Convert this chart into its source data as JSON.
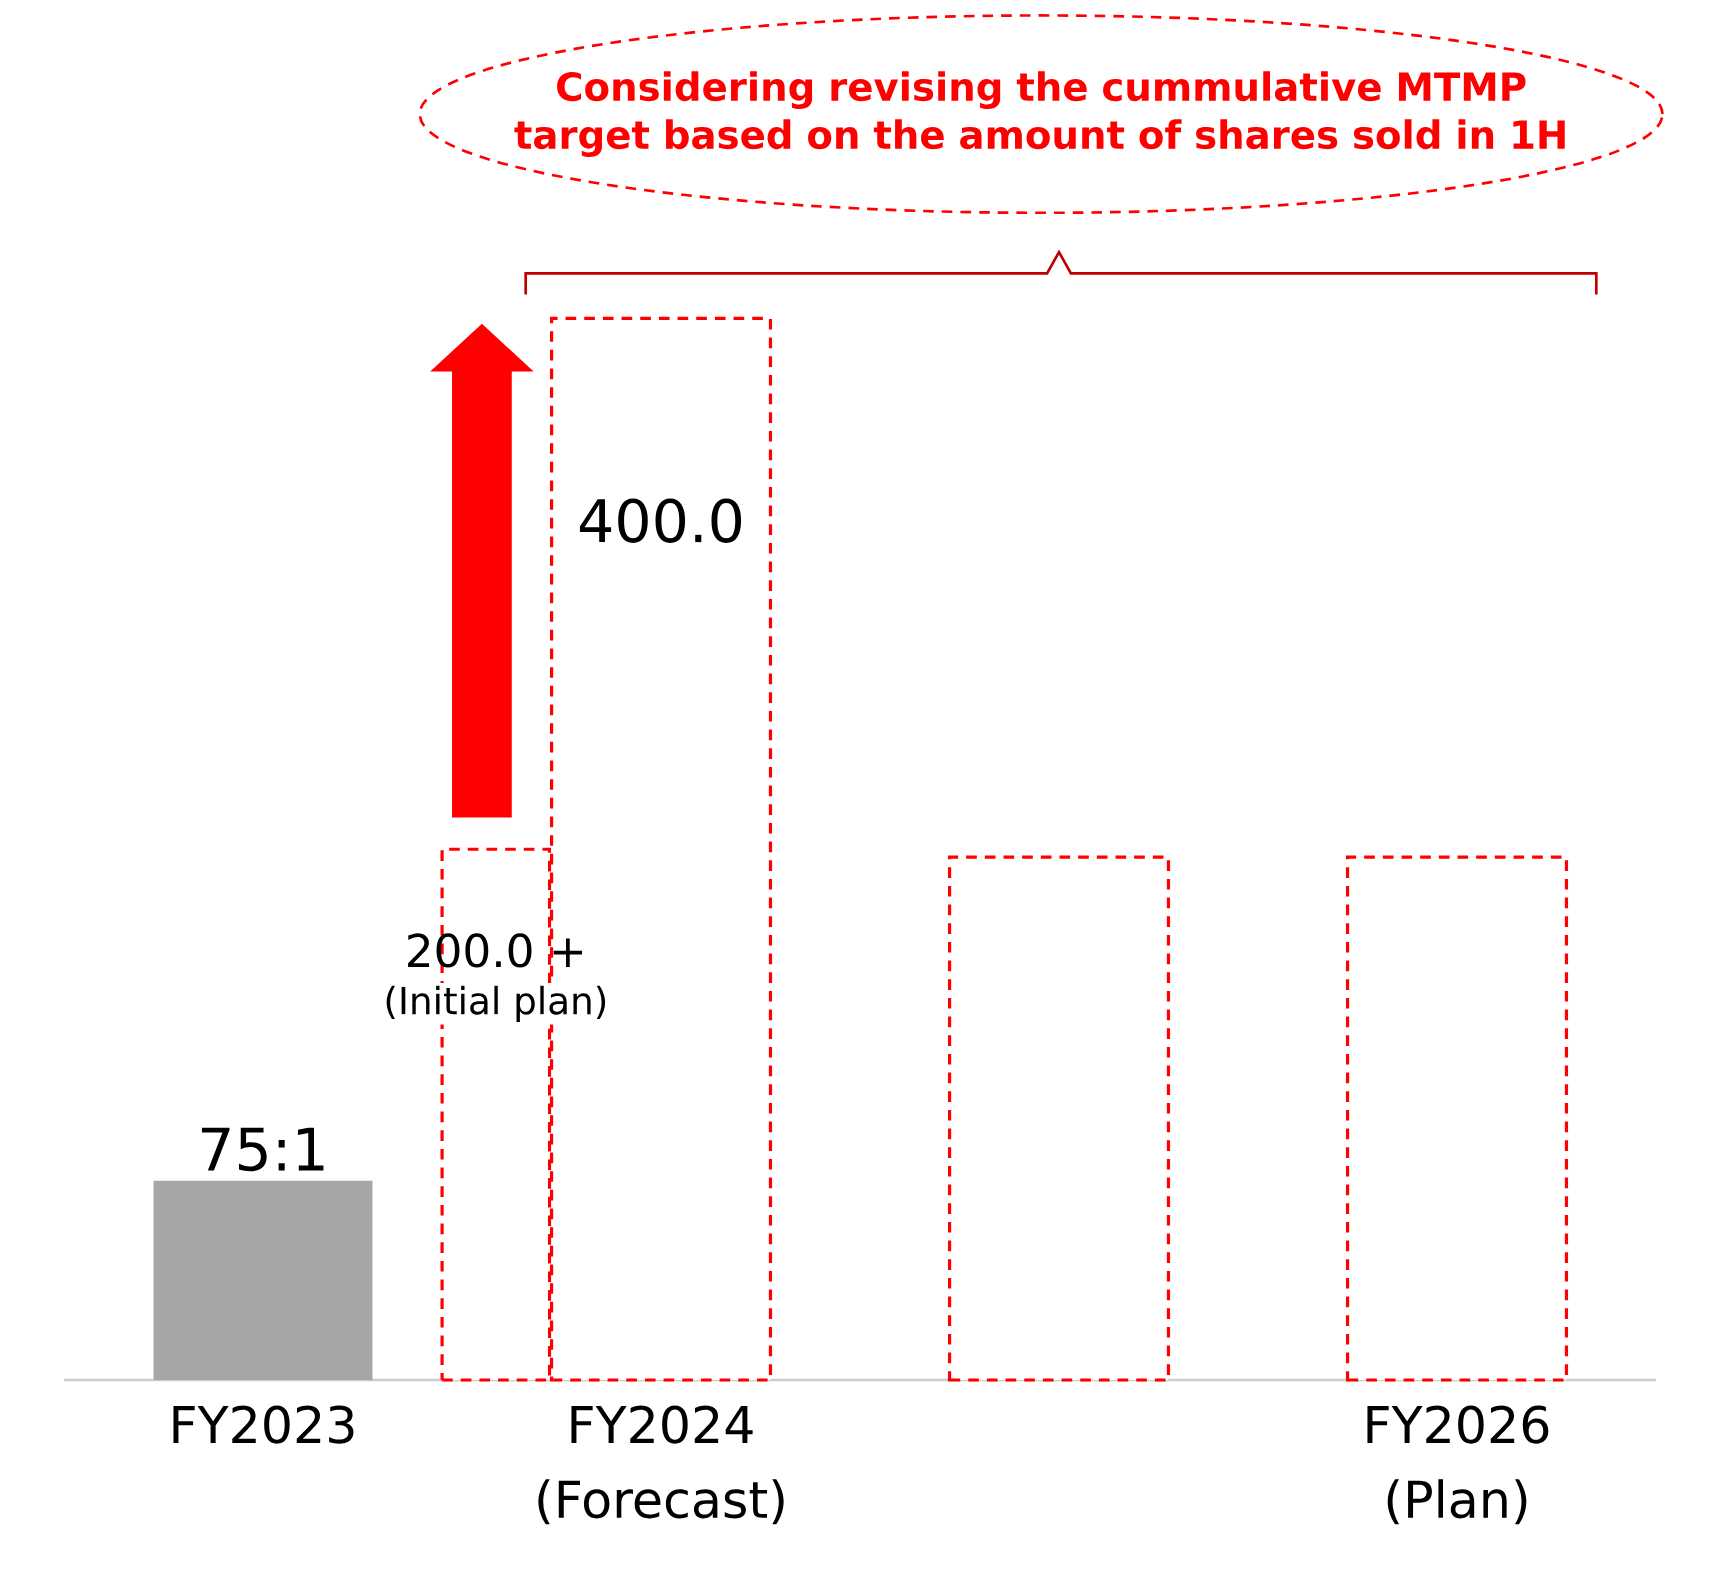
{
  "chart_data": {
    "type": "bar",
    "categories": [
      "FY2023",
      "FY2024 (Forecast)",
      null,
      "FY2026 (Plan)"
    ],
    "series": [
      {
        "color": "#a6a6a6",
        "line_style": "solid",
        "values": [
          75.1,
          null,
          null,
          null
        ],
        "value_labels": [
          "75:1",
          null,
          null,
          null
        ]
      },
      {
        "color": "#ff0000",
        "line_style": "dashed",
        "values": [
          null,
          200,
          null,
          null
        ],
        "value_labels": [
          null,
          "200.0 +",
          null,
          null
        ]
      },
      {
        "color": "#ff0000",
        "line_style": "dashed",
        "values": [
          null,
          400,
          197,
          197
        ],
        "value_labels": [
          null,
          "400.0",
          null,
          null
        ]
      }
    ],
    "annotations": [
      "Considering revising the cummulative MTMP target based on the amount of shares sold in 1H",
      "(Initial plan)"
    ]
  }
}
